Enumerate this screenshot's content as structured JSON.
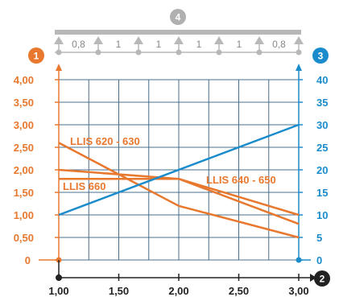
{
  "colors": {
    "orange": "#e8782e",
    "blue": "#1a8ccc",
    "grid": "#4a6f8c",
    "beam": "#b8b8b8",
    "axis_x": "#222222",
    "badge_gray": "#b0b0b0"
  },
  "badges": {
    "left_axis": "1",
    "right_axis": "3",
    "x_axis": "2",
    "top_beam": "4"
  },
  "beam": {
    "segment_labels": [
      "0,8",
      "1",
      "1",
      "1",
      "1",
      "0,8"
    ]
  },
  "chart_data": {
    "type": "line",
    "x": [
      1.0,
      1.5,
      2.0,
      2.5,
      3.0
    ],
    "x_tick_labels": [
      "1,00",
      "1,50",
      "2,00",
      "2,50",
      "3,00"
    ],
    "xlim": [
      1.0,
      3.0
    ],
    "ylim_left": [
      0,
      4
    ],
    "left_tick_labels": [
      "0",
      "0,50",
      "1,00",
      "1,50",
      "2,00",
      "2,50",
      "3,00",
      "3,50",
      "4,00"
    ],
    "ylim_right": [
      0,
      40
    ],
    "right_tick_labels": [
      "0",
      "5",
      "10",
      "15",
      "20",
      "25",
      "30",
      "35",
      "40"
    ],
    "grid": true,
    "series": [
      {
        "name": "LLIS 620 - 630",
        "axis": "left",
        "color": "#e8782e",
        "points": [
          [
            1.0,
            2.6
          ],
          [
            2.0,
            1.2
          ],
          [
            3.0,
            0.5
          ]
        ]
      },
      {
        "name": "LLIS 660",
        "axis": "left",
        "color": "#e8782e",
        "points": [
          [
            1.0,
            2.0
          ],
          [
            2.0,
            1.8
          ],
          [
            3.0,
            0.8
          ]
        ]
      },
      {
        "name": "LLIS 640 - 650",
        "axis": "left",
        "color": "#e8782e",
        "points": [
          [
            1.0,
            1.8
          ],
          [
            2.0,
            1.8
          ],
          [
            3.0,
            1.0
          ]
        ]
      },
      {
        "axis": "right",
        "color": "#1a8ccc",
        "points": [
          [
            1.0,
            10
          ],
          [
            3.0,
            30
          ]
        ]
      }
    ]
  }
}
